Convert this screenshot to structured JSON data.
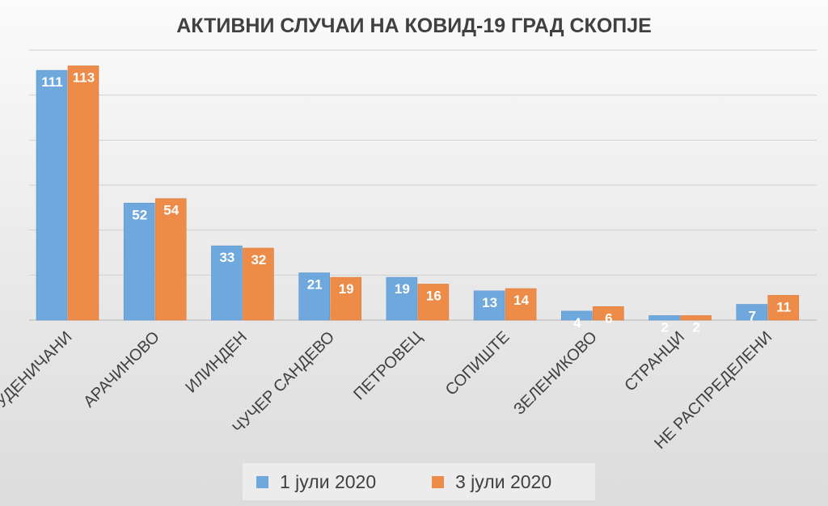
{
  "chart_data": {
    "type": "bar",
    "title": "АКТИВНИ СЛУЧАИ НА КОВИД-19 ГРАД СКОПЈЕ",
    "categories": [
      "СТУДЕНИЧАНИ",
      "АРАЧИНОВО",
      "ИЛИНДЕН",
      "ЧУЧЕР САНДЕВО",
      "ПЕТРОВЕЦ",
      "СОПИШТЕ",
      "ЗЕЛЕНИКОВО",
      "СТРАНЦИ",
      "НЕ РАСПРЕДЕЛЕНИ"
    ],
    "series": [
      {
        "name": "1 јули 2020",
        "values": [
          111,
          52,
          33,
          21,
          19,
          13,
          4,
          2,
          7
        ],
        "color": "#6fa8dc"
      },
      {
        "name": "3 јули 2020",
        "values": [
          113,
          54,
          32,
          19,
          16,
          14,
          6,
          2,
          11
        ],
        "color": "#ed8c49"
      }
    ],
    "ylim": [
      0,
      120
    ],
    "gridlines": [
      0,
      20,
      40,
      60,
      80,
      100,
      120
    ],
    "grid": true,
    "data_labels": true,
    "legend_position": "bottom"
  }
}
